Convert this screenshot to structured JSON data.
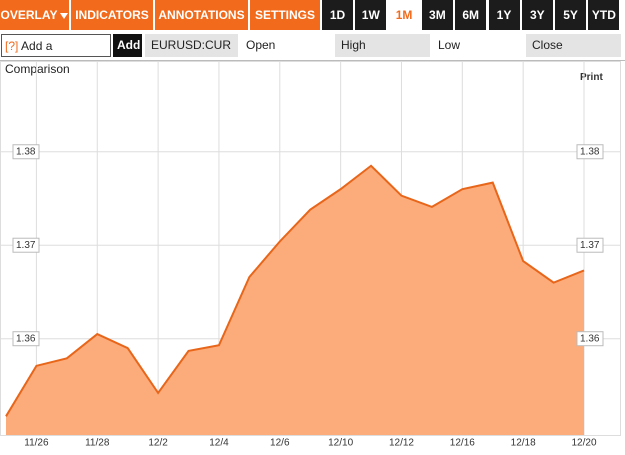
{
  "toolbar": {
    "menus": [
      "OVERLAY",
      "INDICATORS",
      "ANNOTATIONS",
      "SETTINGS"
    ],
    "ranges": [
      "1D",
      "1W",
      "1M",
      "3M",
      "6M",
      "1Y",
      "3Y",
      "5Y",
      "YTD"
    ],
    "selected_range": 2
  },
  "comparison": {
    "help": "[?]",
    "placeholder": "Add a Comparison",
    "button": "Add",
    "symbol": "EURUSD:CUR",
    "fields": [
      "Open",
      "High",
      "Low",
      "Close"
    ]
  },
  "print": "Print",
  "chart_data": {
    "type": "area",
    "categories": [
      null,
      "11/26",
      null,
      "11/28",
      null,
      "12/2",
      null,
      "12/4",
      null,
      "12/6",
      null,
      "12/10",
      null,
      "12/12",
      null,
      "12/16",
      null,
      "12/18",
      null,
      "12/20"
    ],
    "series": [
      {
        "name": "EURUSD:CUR",
        "color": "#e8661a",
        "fill": "#fcab7a",
        "values": [
          1.3517,
          1.3571,
          1.3579,
          1.3605,
          1.359,
          1.3542,
          1.3587,
          1.3593,
          1.3666,
          1.3704,
          1.3738,
          1.376,
          1.3785,
          1.3753,
          1.3741,
          1.376,
          1.3767,
          1.3683,
          1.366,
          1.3673
        ]
      }
    ],
    "ylim": [
      1.3497,
      1.3896
    ],
    "yticks": [
      1.36,
      1.37,
      1.38
    ],
    "grid": true
  }
}
